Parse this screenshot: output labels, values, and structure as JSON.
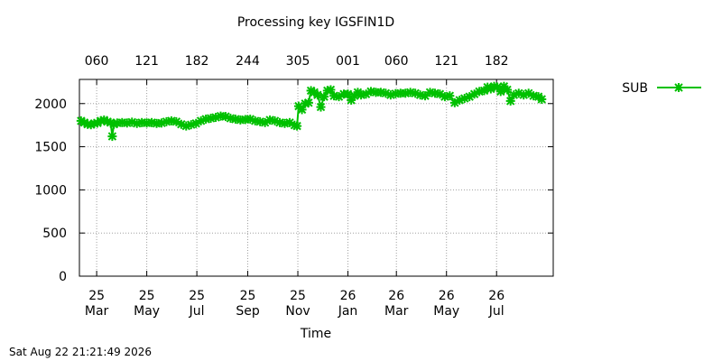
{
  "footer": {
    "timestamp": "Sat Aug 22 21:21:49 2026"
  },
  "chart_data": {
    "type": "line",
    "title": "Processing key IGSFIN1D",
    "xlabel": "Time",
    "ylabel": "",
    "ylim": [
      0,
      2280
    ],
    "xlim": [
      "2025-02-08",
      "2026-09-08"
    ],
    "grid": true,
    "legend_position": "top-right outside",
    "series_color": "#00c000",
    "y_ticks": [
      0,
      500,
      1000,
      1500,
      2000
    ],
    "x_ticks": [
      {
        "date": "2025-03-01",
        "label": [
          "25",
          "Mar"
        ]
      },
      {
        "date": "2025-05-01",
        "label": [
          "25",
          "May"
        ]
      },
      {
        "date": "2025-07-01",
        "label": [
          "25",
          "Jul"
        ]
      },
      {
        "date": "2025-09-01",
        "label": [
          "25",
          "Sep"
        ]
      },
      {
        "date": "2025-11-01",
        "label": [
          "25",
          "Nov"
        ]
      },
      {
        "date": "2026-01-01",
        "label": [
          "26",
          "Jan"
        ]
      },
      {
        "date": "2026-03-01",
        "label": [
          "26",
          "Mar"
        ]
      },
      {
        "date": "2026-05-01",
        "label": [
          "26",
          "May"
        ]
      },
      {
        "date": "2026-07-01",
        "label": [
          "26",
          "Jul"
        ]
      }
    ],
    "top_ticks": [
      {
        "date": "2025-03-01",
        "label": "060"
      },
      {
        "date": "2025-05-01",
        "label": "121"
      },
      {
        "date": "2025-07-01",
        "label": "182"
      },
      {
        "date": "2025-09-01",
        "label": "244"
      },
      {
        "date": "2025-11-01",
        "label": "305"
      },
      {
        "date": "2026-01-01",
        "label": "001"
      },
      {
        "date": "2026-03-01",
        "label": "060"
      },
      {
        "date": "2026-05-01",
        "label": "121"
      },
      {
        "date": "2026-07-01",
        "label": "182"
      }
    ],
    "series": [
      {
        "name": "SUB",
        "points": [
          [
            "2025-02-10",
            1800
          ],
          [
            "2025-02-14",
            1780
          ],
          [
            "2025-02-18",
            1760
          ],
          [
            "2025-02-22",
            1755
          ],
          [
            "2025-02-26",
            1770
          ],
          [
            "2025-03-02",
            1775
          ],
          [
            "2025-03-06",
            1800
          ],
          [
            "2025-03-10",
            1810
          ],
          [
            "2025-03-14",
            1790
          ],
          [
            "2025-03-18",
            1780
          ],
          [
            "2025-03-20",
            1620
          ],
          [
            "2025-03-22",
            1760
          ],
          [
            "2025-03-26",
            1775
          ],
          [
            "2025-04-01",
            1780
          ],
          [
            "2025-04-07",
            1775
          ],
          [
            "2025-04-13",
            1785
          ],
          [
            "2025-04-19",
            1770
          ],
          [
            "2025-04-25",
            1780
          ],
          [
            "2025-05-01",
            1775
          ],
          [
            "2025-05-07",
            1780
          ],
          [
            "2025-05-13",
            1770
          ],
          [
            "2025-05-19",
            1775
          ],
          [
            "2025-05-25",
            1790
          ],
          [
            "2025-05-31",
            1800
          ],
          [
            "2025-06-06",
            1790
          ],
          [
            "2025-06-12",
            1760
          ],
          [
            "2025-06-18",
            1740
          ],
          [
            "2025-06-24",
            1755
          ],
          [
            "2025-06-30",
            1770
          ],
          [
            "2025-07-06",
            1800
          ],
          [
            "2025-07-12",
            1820
          ],
          [
            "2025-07-18",
            1830
          ],
          [
            "2025-07-24",
            1840
          ],
          [
            "2025-07-30",
            1855
          ],
          [
            "2025-08-05",
            1850
          ],
          [
            "2025-08-11",
            1830
          ],
          [
            "2025-08-17",
            1820
          ],
          [
            "2025-08-23",
            1810
          ],
          [
            "2025-08-29",
            1815
          ],
          [
            "2025-09-04",
            1820
          ],
          [
            "2025-09-10",
            1800
          ],
          [
            "2025-09-16",
            1790
          ],
          [
            "2025-09-22",
            1780
          ],
          [
            "2025-09-28",
            1810
          ],
          [
            "2025-10-04",
            1800
          ],
          [
            "2025-10-10",
            1780
          ],
          [
            "2025-10-16",
            1770
          ],
          [
            "2025-10-22",
            1780
          ],
          [
            "2025-10-28",
            1750
          ],
          [
            "2025-10-31",
            1740
          ],
          [
            "2025-11-02",
            1970
          ],
          [
            "2025-11-06",
            1930
          ],
          [
            "2025-11-10",
            2000
          ],
          [
            "2025-11-14",
            2010
          ],
          [
            "2025-11-17",
            2150
          ],
          [
            "2025-11-21",
            2130
          ],
          [
            "2025-11-25",
            2100
          ],
          [
            "2025-11-29",
            1960
          ],
          [
            "2025-12-03",
            2080
          ],
          [
            "2025-12-07",
            2150
          ],
          [
            "2025-12-11",
            2160
          ],
          [
            "2025-12-15",
            2090
          ],
          [
            "2025-12-21",
            2080
          ],
          [
            "2025-12-27",
            2110
          ],
          [
            "2026-01-01",
            2110
          ],
          [
            "2026-01-05",
            2040
          ],
          [
            "2026-01-09",
            2090
          ],
          [
            "2026-01-13",
            2130
          ],
          [
            "2026-01-17",
            2100
          ],
          [
            "2026-01-23",
            2110
          ],
          [
            "2026-01-29",
            2140
          ],
          [
            "2026-02-04",
            2130
          ],
          [
            "2026-02-10",
            2130
          ],
          [
            "2026-02-16",
            2120
          ],
          [
            "2026-02-22",
            2100
          ],
          [
            "2026-02-28",
            2115
          ],
          [
            "2026-03-06",
            2120
          ],
          [
            "2026-03-12",
            2120
          ],
          [
            "2026-03-18",
            2130
          ],
          [
            "2026-03-24",
            2120
          ],
          [
            "2026-03-30",
            2100
          ],
          [
            "2026-04-05",
            2090
          ],
          [
            "2026-04-11",
            2130
          ],
          [
            "2026-04-17",
            2120
          ],
          [
            "2026-04-23",
            2110
          ],
          [
            "2026-04-29",
            2080
          ],
          [
            "2026-05-05",
            2090
          ],
          [
            "2026-05-11",
            2010
          ],
          [
            "2026-05-17",
            2040
          ],
          [
            "2026-05-23",
            2060
          ],
          [
            "2026-05-29",
            2080
          ],
          [
            "2026-06-04",
            2110
          ],
          [
            "2026-06-10",
            2140
          ],
          [
            "2026-06-16",
            2150
          ],
          [
            "2026-06-20",
            2190
          ],
          [
            "2026-06-24",
            2170
          ],
          [
            "2026-06-28",
            2200
          ],
          [
            "2026-07-02",
            2190
          ],
          [
            "2026-07-06",
            2140
          ],
          [
            "2026-07-10",
            2200
          ],
          [
            "2026-07-14",
            2160
          ],
          [
            "2026-07-18",
            2030
          ],
          [
            "2026-07-22",
            2100
          ],
          [
            "2026-07-28",
            2120
          ],
          [
            "2026-08-03",
            2100
          ],
          [
            "2026-08-09",
            2120
          ],
          [
            "2026-08-15",
            2090
          ],
          [
            "2026-08-21",
            2080
          ],
          [
            "2026-08-25",
            2050
          ]
        ]
      }
    ]
  }
}
